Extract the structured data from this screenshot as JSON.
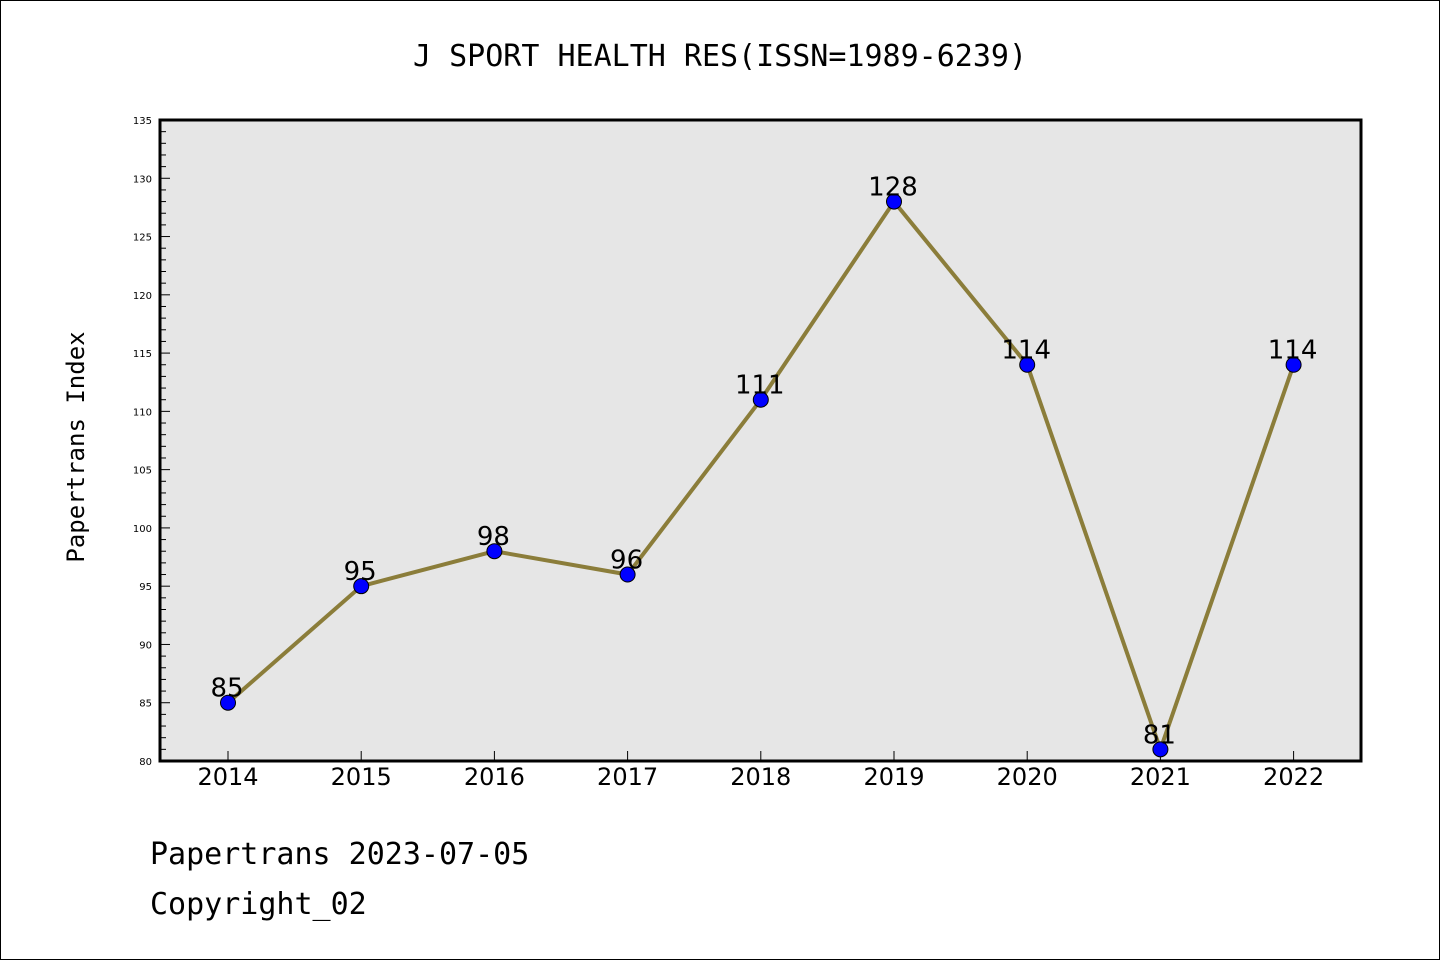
{
  "chart_data": {
    "type": "line",
    "title": "J SPORT HEALTH RES(ISSN=1989-6239)",
    "xlabel": "",
    "ylabel": "Papertrans Index",
    "categories": [
      "2014",
      "2015",
      "2016",
      "2017",
      "2018",
      "2019",
      "2020",
      "2021",
      "2022"
    ],
    "values": [
      85,
      95,
      98,
      96,
      111,
      128,
      114,
      81,
      114
    ],
    "ylim": [
      80,
      135
    ],
    "yticks": [
      80,
      85,
      90,
      95,
      100,
      105,
      110,
      115,
      120,
      125,
      130,
      135
    ],
    "grid": false,
    "legend": "none",
    "data_labels": true,
    "line_color": "#8B7D3A",
    "marker_color": "#0000FF",
    "plot_background": "#E6E6E6"
  },
  "footer": {
    "line1": "Papertrans 2023-07-05",
    "line2": "Copyright_02"
  }
}
